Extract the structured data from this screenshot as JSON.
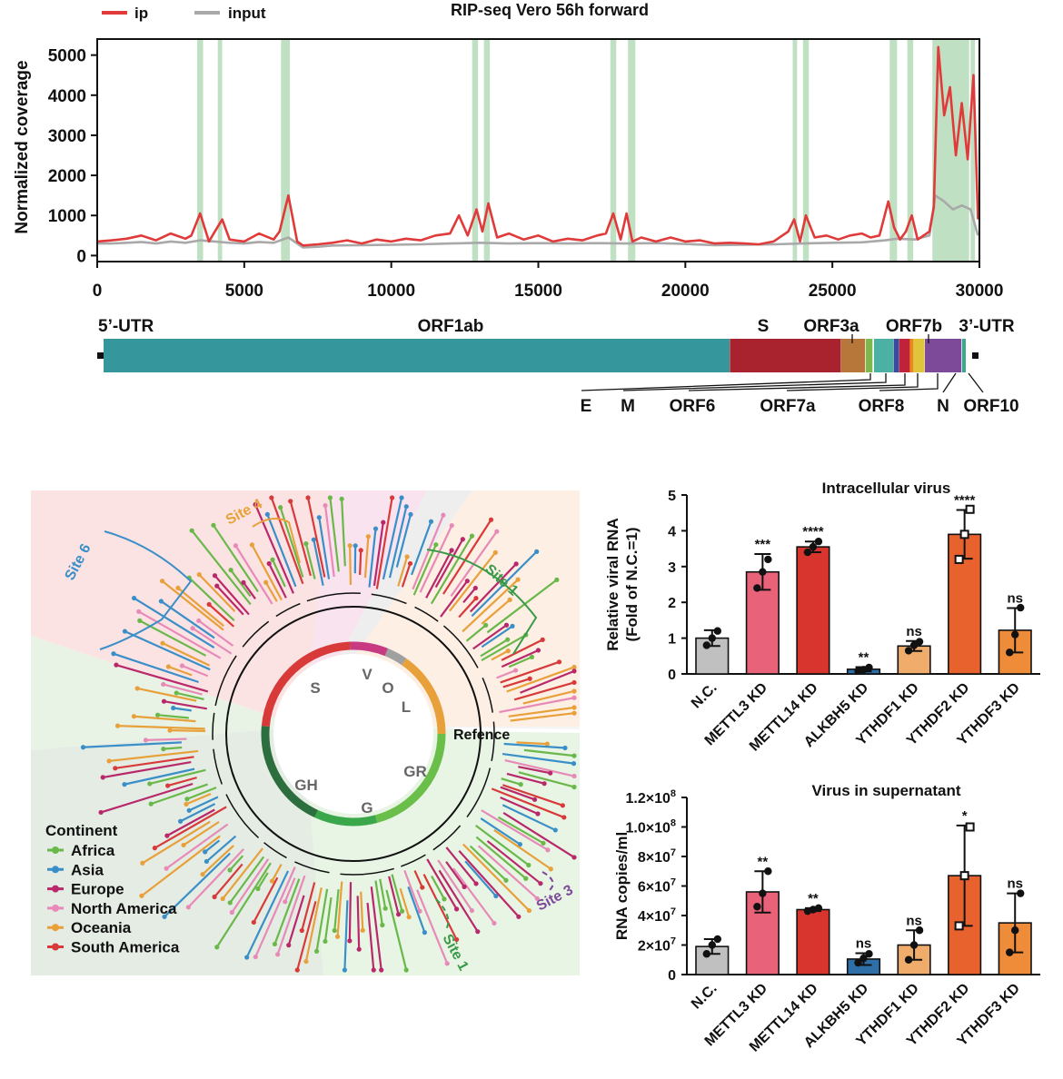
{
  "coverage_panel": {
    "title": "RIP-seq Vero 56h forward",
    "ylabel": "Normalized coverage",
    "legend": [
      {
        "name": "ip",
        "color": "#e03a3a"
      },
      {
        "name": "input",
        "color": "#a9a9a9"
      }
    ]
  },
  "genome_panel": {
    "labels_top": [
      "5’-UTR",
      "ORF1ab",
      "S",
      "ORF3a",
      "ORF7b",
      "3’-UTR"
    ],
    "labels_bottom": [
      "E",
      "M",
      "ORF6",
      "ORF7a",
      "ORF8",
      "N",
      "ORF10"
    ],
    "segments": [
      {
        "name": "ORF1ab",
        "color": "#35969c",
        "start": 266,
        "end": 21555
      },
      {
        "name": "S",
        "color": "#a9232f",
        "start": 21563,
        "end": 25384
      },
      {
        "name": "ORF3a",
        "color": "#b8773a",
        "start": 25393,
        "end": 26220
      },
      {
        "name": "E",
        "color": "#7cb84a",
        "start": 26245,
        "end": 26472
      },
      {
        "name": "M",
        "color": "#4db0a4",
        "start": 26523,
        "end": 27191
      },
      {
        "name": "ORF6",
        "color": "#3b4a9a",
        "start": 27202,
        "end": 27387
      },
      {
        "name": "ORF7a",
        "color": "#c0223a",
        "start": 27394,
        "end": 27759
      },
      {
        "name": "ORF7b",
        "color": "#e8891a",
        "start": 27756,
        "end": 27887
      },
      {
        "name": "ORF8",
        "color": "#e0c43a",
        "start": 27894,
        "end": 28259
      },
      {
        "name": "N",
        "color": "#7d4a9a",
        "start": 28274,
        "end": 29533
      },
      {
        "name": "ORF10",
        "color": "#3aa88a",
        "start": 29558,
        "end": 29674
      }
    ]
  },
  "tree_panel": {
    "clade_labels": [
      "S",
      "V",
      "O",
      "L",
      "GR",
      "G",
      "GH"
    ],
    "reference_label": "Refence",
    "site_labels": [
      {
        "text": "Site 6",
        "color": "#3a8fc8"
      },
      {
        "text": "Site 4",
        "color": "#e8a03a"
      },
      {
        "text": "Site 1",
        "color": "#3a9a4a"
      },
      {
        "text": "Site 3",
        "color": "#7d4a9a"
      },
      {
        "text": "Site 1",
        "color": "#3a9a4a"
      }
    ],
    "legend_title": "Continent",
    "legend": [
      {
        "name": "Africa",
        "color": "#6ab84a"
      },
      {
        "name": "Asia",
        "color": "#3a8fc8"
      },
      {
        "name": "Europe",
        "color": "#b8286a"
      },
      {
        "name": "North America",
        "color": "#e88ab8"
      },
      {
        "name": "Oceania",
        "color": "#e8a03a"
      },
      {
        "name": "South America",
        "color": "#d83a3a"
      }
    ]
  },
  "chart_data": [
    {
      "type": "line",
      "title": "RIP-seq Vero 56h forward",
      "ylabel": "Normalized coverage",
      "xlim": [
        0,
        30000
      ],
      "ylim": [
        -150,
        5400
      ],
      "x_ticks": [
        0,
        5000,
        10000,
        15000,
        20000,
        25000,
        30000
      ],
      "y_ticks": [
        0,
        1000,
        2000,
        3000,
        4000,
        5000
      ],
      "highlight_regions": [
        [
          3400,
          3600
        ],
        [
          4100,
          4250
        ],
        [
          6250,
          6550
        ],
        [
          12750,
          12950
        ],
        [
          13150,
          13350
        ],
        [
          17450,
          17650
        ],
        [
          18050,
          18300
        ],
        [
          23650,
          23800
        ],
        [
          24000,
          24200
        ],
        [
          26950,
          27200
        ],
        [
          27550,
          27750
        ],
        [
          28400,
          29650
        ],
        [
          29700,
          29850
        ]
      ],
      "series": [
        {
          "name": "ip",
          "color": "#e03a3a",
          "x": [
            0,
            500,
            1000,
            1500,
            2000,
            2500,
            3000,
            3200,
            3500,
            3800,
            4000,
            4250,
            4500,
            5000,
            5500,
            6000,
            6200,
            6500,
            6800,
            7000,
            7500,
            8000,
            8500,
            9000,
            9500,
            10000,
            10500,
            11000,
            11500,
            12000,
            12300,
            12600,
            12900,
            13100,
            13300,
            13600,
            14000,
            14500,
            15000,
            15500,
            16000,
            16500,
            17000,
            17300,
            17550,
            17800,
            18000,
            18200,
            18500,
            19000,
            19500,
            20000,
            20500,
            21000,
            21500,
            22000,
            22500,
            23000,
            23500,
            23700,
            23900,
            24100,
            24400,
            24800,
            25200,
            25600,
            26000,
            26300,
            26600,
            26900,
            27100,
            27300,
            27500,
            27700,
            27900,
            28100,
            28300,
            28450,
            28600,
            28800,
            29000,
            29200,
            29400,
            29600,
            29800,
            29950
          ],
          "values": [
            350,
            380,
            420,
            500,
            380,
            550,
            420,
            500,
            1050,
            350,
            600,
            900,
            400,
            350,
            550,
            400,
            600,
            1500,
            350,
            250,
            280,
            320,
            380,
            300,
            400,
            350,
            420,
            380,
            500,
            550,
            1000,
            500,
            1150,
            600,
            1300,
            450,
            550,
            400,
            500,
            350,
            420,
            380,
            500,
            550,
            1050,
            400,
            1050,
            350,
            450,
            350,
            450,
            350,
            380,
            300,
            320,
            300,
            280,
            350,
            600,
            900,
            350,
            1000,
            450,
            500,
            400,
            500,
            550,
            450,
            500,
            1350,
            700,
            400,
            600,
            1000,
            400,
            500,
            600,
            1200,
            5200,
            3500,
            4200,
            2500,
            3800,
            2400,
            4500,
            900
          ]
        },
        {
          "name": "input",
          "color": "#a9a9a9",
          "x": [
            0,
            500,
            1000,
            1500,
            2000,
            2500,
            3000,
            3500,
            4000,
            4500,
            5000,
            5500,
            6000,
            6500,
            7000,
            7500,
            8000,
            9000,
            10000,
            11000,
            12000,
            13000,
            14000,
            15000,
            16000,
            17000,
            18000,
            19000,
            20000,
            21000,
            22000,
            23000,
            24000,
            25000,
            26000,
            26800,
            27200,
            27800,
            28300,
            28500,
            28800,
            29100,
            29400,
            29700,
            29950
          ],
          "values": [
            300,
            300,
            320,
            340,
            300,
            350,
            320,
            380,
            350,
            320,
            300,
            340,
            320,
            450,
            200,
            220,
            250,
            260,
            270,
            280,
            300,
            320,
            300,
            310,
            300,
            310,
            300,
            310,
            290,
            260,
            270,
            280,
            300,
            320,
            330,
            380,
            420,
            400,
            500,
            1500,
            1350,
            1150,
            1250,
            1150,
            500
          ]
        }
      ]
    },
    {
      "type": "bar",
      "title": "Intracellular virus",
      "ylabel": "Relative viral RNA",
      "ylabel2": "(Fold of N.C.=1)",
      "categories": [
        "N.C.",
        "METTL3 KD",
        "METTL14 KD",
        "ALKBH5 KD",
        "YTHDF1 KD",
        "YTHDF2 KD",
        "YTHDF3 KD"
      ],
      "values": [
        1.0,
        2.85,
        3.55,
        0.13,
        0.78,
        3.9,
        1.22
      ],
      "errors": [
        0.22,
        0.5,
        0.15,
        0.06,
        0.14,
        0.68,
        0.62
      ],
      "significance": [
        "",
        "***",
        "****",
        "**",
        "ns",
        "****",
        "ns"
      ],
      "colors": [
        "#c0c0c0",
        "#e8627a",
        "#d8352e",
        "#2f6fa8",
        "#efac6a",
        "#e8622e",
        "#ee8c3a"
      ],
      "points": [
        [
          0.8,
          1.0,
          1.2
        ],
        [
          2.4,
          2.85,
          3.2
        ],
        [
          3.4,
          3.55,
          3.7
        ],
        [
          0.08,
          0.12,
          0.18
        ],
        [
          0.65,
          0.8,
          0.9
        ],
        [
          3.2,
          3.9,
          4.6
        ],
        [
          0.6,
          1.1,
          1.85
        ]
      ],
      "ylim": [
        0,
        5
      ],
      "y_ticks": [
        0,
        1,
        2,
        3,
        4,
        5
      ]
    },
    {
      "type": "bar",
      "title": "Virus in supernatant",
      "ylabel": "RNA copies/ml",
      "categories": [
        "N.C.",
        "METTL3 KD",
        "METTL14 KD",
        "ALKBH5 KD",
        "YTHDF1 KD",
        "YTHDF2 KD",
        "YTHDF3 KD"
      ],
      "values": [
        19000000,
        56000000,
        44000000,
        10500000,
        20000000,
        67000000,
        35000000
      ],
      "errors": [
        5000000,
        14000000,
        1000000,
        4000000,
        10000000,
        34000000,
        20000000
      ],
      "significance": [
        "",
        "**",
        "**",
        "ns",
        "ns",
        "*",
        "ns"
      ],
      "colors": [
        "#c0c0c0",
        "#e8627a",
        "#d8352e",
        "#2f6fa8",
        "#efac6a",
        "#e8622e",
        "#ee8c3a"
      ],
      "points": [
        [
          14000000,
          20000000,
          24000000
        ],
        [
          46000000,
          55000000,
          70000000
        ],
        [
          43000000,
          44000000,
          45000000
        ],
        [
          8000000,
          11000000,
          14000000
        ],
        [
          10000000,
          20000000,
          30000000
        ],
        [
          33000000,
          67000000,
          100000000
        ],
        [
          15000000,
          30000000,
          55000000
        ]
      ],
      "ylim": [
        0,
        120000000
      ],
      "y_ticks": [
        0,
        20000000,
        40000000,
        60000000,
        80000000,
        100000000,
        120000000
      ],
      "y_tick_mantissa": [
        "0",
        "2×10",
        "4×10",
        "6×10",
        "8×10",
        "1.0×10",
        "1.2×10"
      ],
      "y_tick_exponent": [
        "",
        "7",
        "7",
        "7",
        "7",
        "8",
        "8"
      ]
    }
  ]
}
